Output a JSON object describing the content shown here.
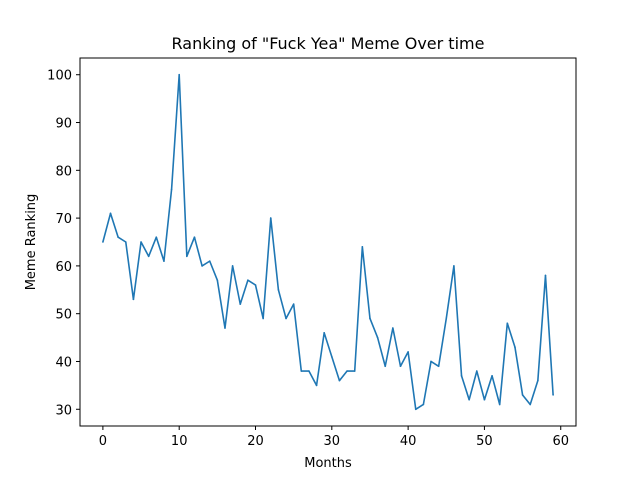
{
  "chart_data": {
    "type": "line",
    "title": "Ranking of \"Fuck Yea\" Meme Over time",
    "xlabel": "Months",
    "ylabel": "Meme Ranking",
    "xlim": [
      -3,
      62
    ],
    "ylim": [
      26.5,
      103.5
    ],
    "xticks": [
      0,
      10,
      20,
      30,
      40,
      50,
      60
    ],
    "yticks": [
      30,
      40,
      50,
      60,
      70,
      80,
      90,
      100
    ],
    "grid": false,
    "line_color": "#1f77b4",
    "x": [
      0,
      1,
      2,
      3,
      4,
      5,
      6,
      7,
      8,
      9,
      10,
      11,
      12,
      13,
      14,
      15,
      16,
      17,
      18,
      19,
      20,
      21,
      22,
      23,
      24,
      25,
      26,
      27,
      28,
      29,
      30,
      31,
      32,
      33,
      34,
      35,
      36,
      37,
      38,
      39,
      40,
      41,
      42,
      43,
      44,
      45,
      46,
      47,
      48,
      49,
      50,
      51,
      52,
      53,
      54,
      55,
      56,
      57,
      58,
      59
    ],
    "y": [
      65,
      71,
      66,
      65,
      53,
      65,
      62,
      66,
      61,
      76,
      100,
      62,
      66,
      60,
      61,
      57,
      47,
      60,
      52,
      57,
      56,
      49,
      70,
      55,
      49,
      52,
      38,
      38,
      35,
      46,
      41,
      36,
      38,
      38,
      64,
      49,
      45,
      39,
      47,
      39,
      42,
      30,
      31,
      40,
      39,
      49,
      60,
      37,
      32,
      38,
      32,
      37,
      31,
      48,
      43,
      33,
      31,
      36,
      58,
      33
    ]
  }
}
